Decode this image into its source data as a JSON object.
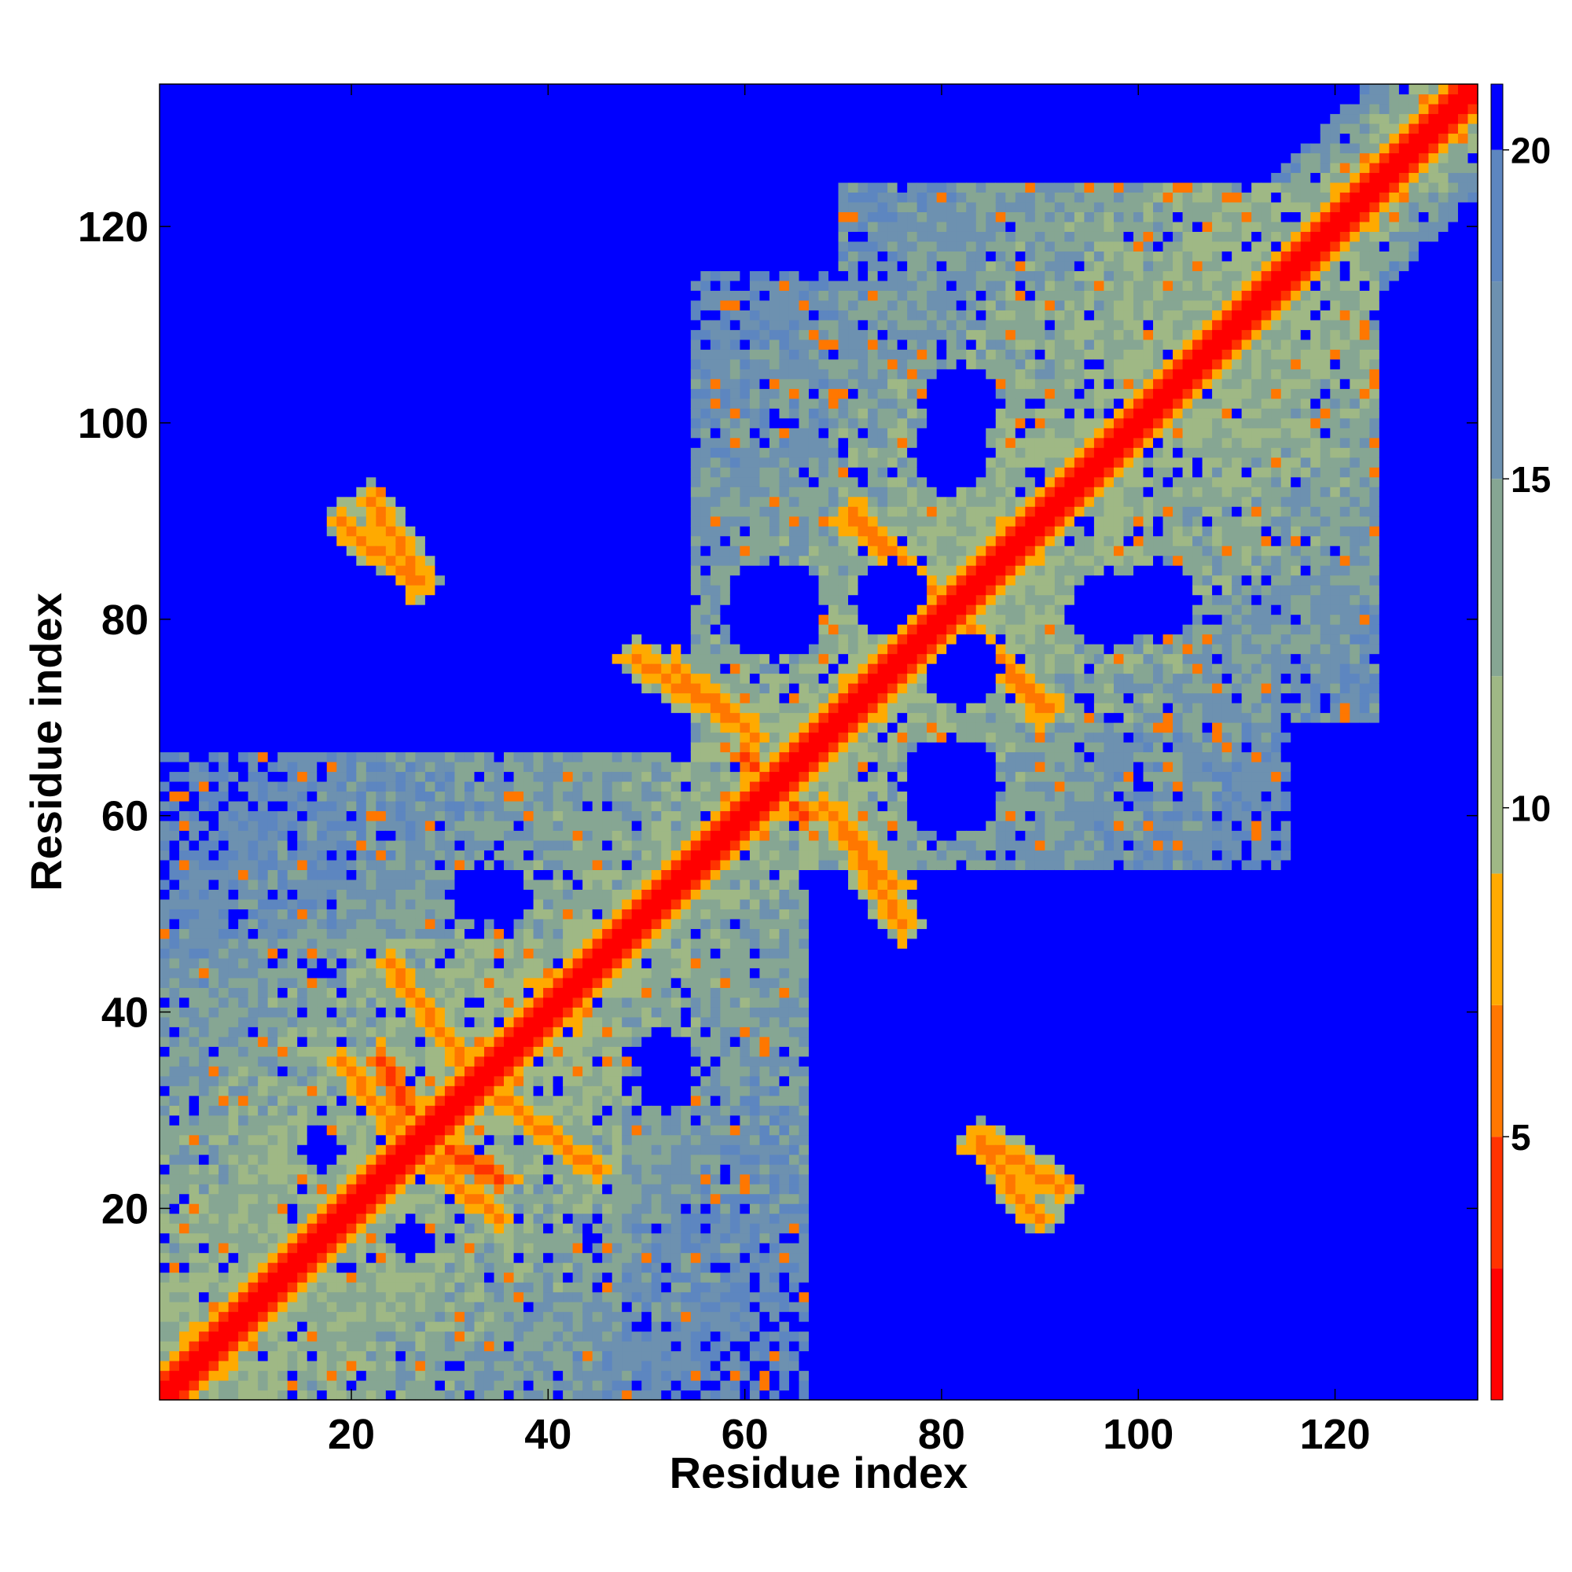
{
  "chart_data": {
    "type": "heatmap",
    "title": "",
    "xlabel": "Residue index",
    "ylabel": "Residue index",
    "n_residues": 134,
    "xlim": [
      1,
      134
    ],
    "ylim": [
      1,
      134
    ],
    "x_ticks": [
      20,
      40,
      60,
      80,
      100,
      120
    ],
    "y_ticks": [
      20,
      40,
      60,
      80,
      100,
      120
    ],
    "colorbar": {
      "ticks": [
        5,
        10,
        15,
        20
      ],
      "range": [
        1,
        21
      ],
      "levels": [
        {
          "max": 3,
          "color": "#ff0000"
        },
        {
          "max": 5,
          "color": "#ff3300"
        },
        {
          "max": 7,
          "color": "#ff7700"
        },
        {
          "max": 9,
          "color": "#ffaa00"
        },
        {
          "max": 12,
          "color": "#9fb885"
        },
        {
          "max": 15,
          "color": "#86a693"
        },
        {
          "max": 18,
          "color": "#6d91b0"
        },
        {
          "max": 20,
          "color": "#5d86c0"
        },
        {
          "max": 21,
          "color": "#0000ff"
        }
      ]
    },
    "colors": {
      "background_blue": "#0000ff",
      "diagonal_red": "#ff0000",
      "contact_orange": "#ff8800",
      "mid_green": "#9fb885",
      "far_steel": "#5d86c0"
    },
    "features": {
      "diagonal_band": {
        "value_on_diagonal": 1.5,
        "width": 2
      },
      "blocks": [
        {
          "range": [
            1,
            47
          ],
          "strength": 1
        },
        {
          "range": [
            1,
            66
          ],
          "strength": 0.8
        },
        {
          "range": [
            55,
            115
          ],
          "strength": 0.9
        },
        {
          "range": [
            70,
            124
          ],
          "strength": 1
        }
      ],
      "contact_lines": [
        {
          "i": [
            22,
            27
          ],
          "j": [
            92,
            84
          ],
          "value": 7
        },
        {
          "i": [
            71,
            80
          ],
          "j": [
            91,
            82
          ],
          "value": 7
        },
        {
          "i": [
            82,
            90
          ],
          "j": [
            79,
            71
          ],
          "value": 7
        },
        {
          "i": [
            49,
            60
          ],
          "j": [
            76,
            69
          ],
          "value": 7
        },
        {
          "i": [
            68,
            75
          ],
          "j": [
            61,
            53
          ],
          "value": 7
        },
        {
          "i": [
            23,
            27
          ],
          "j": [
            35,
            28
          ],
          "value": 6
        },
        {
          "i": [
            27,
            35
          ],
          "j": [
            25,
            19
          ],
          "value": 7
        },
        {
          "i": [
            84,
            90
          ],
          "j": [
            26,
            19
          ],
          "value": 7
        },
        {
          "i": [
            60,
            66
          ],
          "j": [
            66,
            60
          ],
          "value": 6
        },
        {
          "i": [
            34,
            45
          ],
          "j": [
            32,
            24
          ],
          "value": 8
        }
      ],
      "holes": [
        {
          "center": [
            50,
            82
          ],
          "radius": 4
        },
        {
          "center": [
            18,
            82
          ],
          "radius": 4
        },
        {
          "center": [
            75,
            82
          ],
          "radius": 4
        },
        {
          "center": [
            102,
            82
          ],
          "radius": 4
        },
        {
          "center": [
            81,
            97
          ],
          "radius": 4
        },
        {
          "center": [
            81,
            63
          ],
          "radius": 5
        },
        {
          "center": [
            81,
            22
          ],
          "radius": 4
        },
        {
          "center": [
            52,
            35
          ],
          "radius": 3
        },
        {
          "center": [
            33,
            52
          ],
          "radius": 3
        },
        {
          "center": [
            40,
            97
          ],
          "radius": 3
        },
        {
          "center": [
            17,
            26
          ],
          "radius": 2
        },
        {
          "center": [
            98,
            28
          ],
          "radius": 3
        }
      ],
      "seed": 7
    }
  }
}
